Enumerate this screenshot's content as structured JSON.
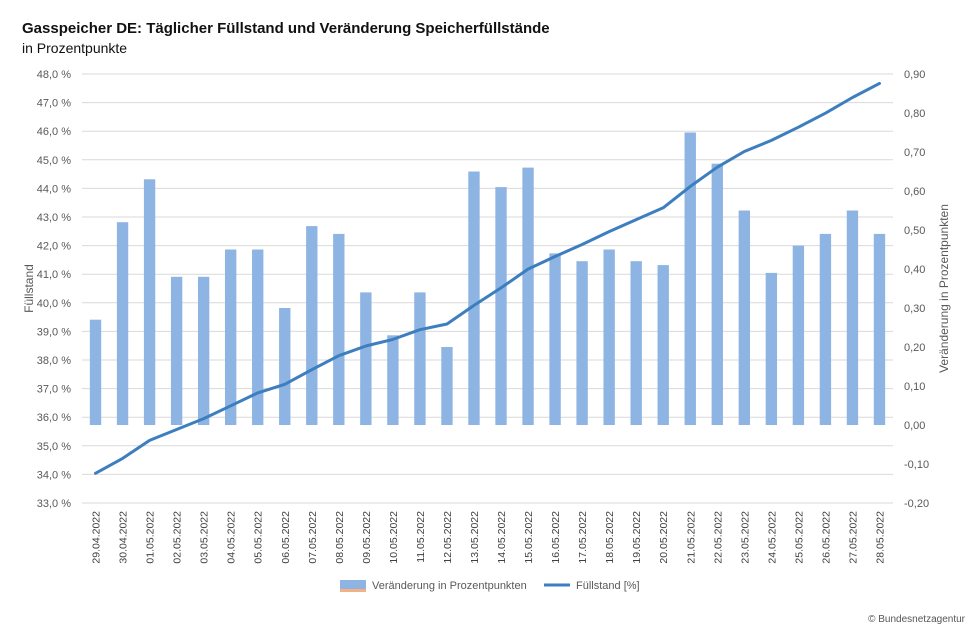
{
  "title": "Gasspeicher DE: Täglicher Füllstand und Veränderung Speicherfüllstände",
  "subtitle": "in Prozentpunkte",
  "copyright": "© Bundesnetzagentur",
  "chart_data": {
    "type": "bar+line",
    "categories": [
      "29.04.2022",
      "30.04.2022",
      "01.05.2022",
      "02.05.2022",
      "03.05.2022",
      "04.05.2022",
      "05.05.2022",
      "06.05.2022",
      "07.05.2022",
      "08.05.2022",
      "09.05.2022",
      "10.05.2022",
      "11.05.2022",
      "12.05.2022",
      "13.05.2022",
      "14.05.2022",
      "15.05.2022",
      "16.05.2022",
      "17.05.2022",
      "18.05.2022",
      "19.05.2022",
      "20.05.2022",
      "21.05.2022",
      "22.05.2022",
      "23.05.2022",
      "24.05.2022",
      "25.05.2022",
      "26.05.2022",
      "27.05.2022",
      "28.05.2022"
    ],
    "series": [
      {
        "name": "Veränderung in Prozentpunkten",
        "type": "bar",
        "axis": "right",
        "color": "#8db4e2",
        "values": [
          0.27,
          0.52,
          0.63,
          0.38,
          0.38,
          0.45,
          0.45,
          0.3,
          0.51,
          0.49,
          0.34,
          0.23,
          0.34,
          0.2,
          0.65,
          0.61,
          0.66,
          0.44,
          0.42,
          0.45,
          0.42,
          0.41,
          0.75,
          0.67,
          0.55,
          0.39,
          0.46,
          0.49,
          0.55,
          0.49
        ]
      },
      {
        "name": "Füllstand [%]",
        "type": "line",
        "axis": "left",
        "color": "#3d7ebf",
        "values": [
          34.04,
          34.56,
          35.19,
          35.57,
          35.95,
          36.4,
          36.85,
          37.15,
          37.66,
          38.15,
          38.49,
          38.72,
          39.06,
          39.26,
          39.91,
          40.52,
          41.18,
          41.62,
          42.04,
          42.49,
          42.91,
          43.32,
          44.07,
          44.74,
          45.29,
          45.68,
          46.14,
          46.63,
          47.18,
          47.67
        ]
      }
    ],
    "ylabel": "Füllstand",
    "y2label": "Veränderung in Prozentpunkten",
    "yticks": [
      "33,0 %",
      "34,0 %",
      "35,0 %",
      "36,0 %",
      "37,0 %",
      "38,0 %",
      "39,0 %",
      "40,0 %",
      "41,0 %",
      "42,0 %",
      "43,0 %",
      "44,0 %",
      "45,0 %",
      "46,0 %",
      "47,0 %",
      "48,0 %"
    ],
    "y2ticks": [
      "-0,20",
      "-0,10",
      "0,00",
      "0,10",
      "0,20",
      "0,30",
      "0,40",
      "0,50",
      "0,60",
      "0,70",
      "0,80",
      "0,90"
    ],
    "ylim": [
      33,
      48
    ],
    "y2lim": [
      -0.2,
      0.9
    ],
    "grid": true,
    "legend_position": "bottom",
    "legend": [
      "Veränderung in Prozentpunkten",
      "Füllstand [%]"
    ]
  }
}
